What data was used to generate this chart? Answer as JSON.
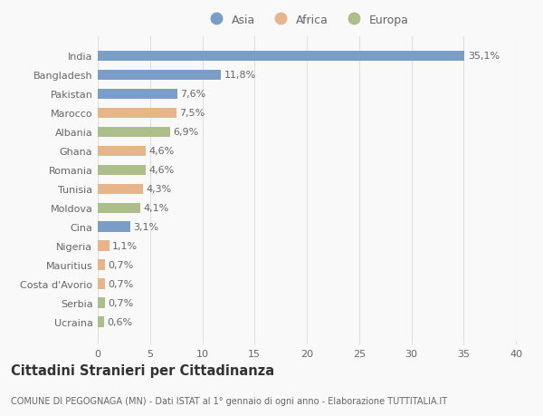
{
  "countries": [
    "India",
    "Bangladesh",
    "Pakistan",
    "Marocco",
    "Albania",
    "Ghana",
    "Romania",
    "Tunisia",
    "Moldova",
    "Cina",
    "Nigeria",
    "Mauritius",
    "Costa d'Avorio",
    "Serbia",
    "Ucraina"
  ],
  "values": [
    35.1,
    11.8,
    7.6,
    7.5,
    6.9,
    4.6,
    4.6,
    4.3,
    4.1,
    3.1,
    1.1,
    0.7,
    0.7,
    0.7,
    0.6
  ],
  "labels": [
    "35,1%",
    "11,8%",
    "7,6%",
    "7,5%",
    "6,9%",
    "4,6%",
    "4,6%",
    "4,3%",
    "4,1%",
    "3,1%",
    "1,1%",
    "0,7%",
    "0,7%",
    "0,7%",
    "0,6%"
  ],
  "continents": [
    "Asia",
    "Asia",
    "Asia",
    "Africa",
    "Europa",
    "Africa",
    "Europa",
    "Africa",
    "Europa",
    "Asia",
    "Africa",
    "Africa",
    "Africa",
    "Europa",
    "Europa"
  ],
  "colors": {
    "Asia": "#7b9ec8",
    "Africa": "#e8b48a",
    "Europa": "#aebe8a"
  },
  "title": "Cittadini Stranieri per Cittadinanza",
  "subtitle": "COMUNE DI PEGOGNAGA (MN) - Dati ISTAT al 1° gennaio di ogni anno - Elaborazione TUTTITALIA.IT",
  "xlim": [
    0,
    40
  ],
  "xticks": [
    0,
    5,
    10,
    15,
    20,
    25,
    30,
    35,
    40
  ],
  "background_color": "#f9f9f9",
  "bar_height": 0.55,
  "grid_color": "#e0e0e0",
  "text_color": "#666666",
  "label_fontsize": 8,
  "tick_fontsize": 8,
  "title_fontsize": 10.5,
  "subtitle_fontsize": 7
}
